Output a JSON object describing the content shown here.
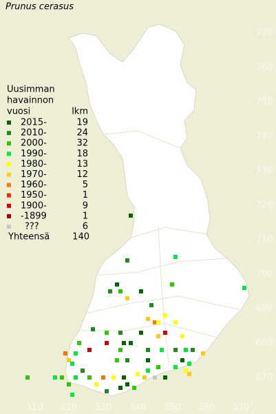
{
  "title": "Prunus cerasus",
  "legend": {
    "heading": [
      "Uusimman",
      "havainnon",
      "vuosi"
    ],
    "count_heading": "lkm",
    "items": [
      {
        "label": "2015-",
        "count": 19,
        "color": "#006400"
      },
      {
        "label": "2010-",
        "count": 24,
        "color": "#1e8c1e"
      },
      {
        "label": "2000-",
        "count": 32,
        "color": "#2ec800"
      },
      {
        "label": "1990-",
        "count": 18,
        "color": "#00e83c"
      },
      {
        "label": "1980-",
        "count": 13,
        "color": "#ffff00"
      },
      {
        "label": "1970-",
        "count": 12,
        "color": "#ffc81e"
      },
      {
        "label": "1960-",
        "count": 5,
        "color": "#ff7800"
      },
      {
        "label": "1950-",
        "count": 1,
        "color": "#ff2800"
      },
      {
        "label": "1900-",
        "count": 9,
        "color": "#d20000"
      },
      {
        "label": "-1899",
        "count": 1,
        "color": "#a00000"
      },
      {
        "label": "???",
        "count": 6,
        "color": "#c8c8c8"
      }
    ],
    "total_label": "Yhteensä",
    "total": 140
  },
  "map": {
    "xticks": [
      310,
      320,
      330,
      340,
      350,
      360,
      370
    ],
    "yticks": [
      670,
      680,
      690,
      700,
      710,
      720,
      730,
      740,
      750,
      760,
      770
    ],
    "observations": [
      [
        338,
        717,
        0
      ],
      [
        337,
        704,
        1
      ],
      [
        334,
        697,
        0
      ],
      [
        332,
        695,
        1
      ],
      [
        335,
        695,
        2
      ],
      [
        337,
        693,
        5
      ],
      [
        350,
        697,
        2
      ],
      [
        371,
        696,
        3
      ],
      [
        341,
        695,
        0
      ],
      [
        351,
        705,
        3
      ],
      [
        344,
        691,
        1
      ],
      [
        343,
        687,
        5
      ],
      [
        345,
        686,
        6
      ],
      [
        346,
        686,
        4
      ],
      [
        348,
        688,
        4
      ],
      [
        351,
        686,
        4
      ],
      [
        348,
        683,
        8
      ],
      [
        346,
        682,
        5
      ],
      [
        353,
        682,
        4
      ],
      [
        341,
        683,
        0
      ],
      [
        335,
        683,
        1
      ],
      [
        331,
        683,
        2
      ],
      [
        331,
        680,
        8
      ],
      [
        336,
        680,
        0
      ],
      [
        338,
        680,
        0
      ],
      [
        335,
        678,
        2
      ],
      [
        337,
        675,
        1
      ],
      [
        334,
        675,
        2
      ],
      [
        327,
        684,
        1
      ],
      [
        326,
        678,
        8
      ],
      [
        323,
        680,
        2
      ],
      [
        322,
        677,
        3
      ],
      [
        319,
        677,
        6
      ],
      [
        320,
        675,
        5
      ],
      [
        321,
        674,
        3
      ],
      [
        343,
        678,
        1
      ],
      [
        343,
        675,
        0
      ],
      [
        347,
        678,
        3
      ],
      [
        351,
        678,
        1
      ],
      [
        354,
        678,
        3
      ],
      [
        356,
        678,
        1
      ],
      [
        359,
        677,
        5
      ],
      [
        353,
        675,
        0
      ],
      [
        355,
        674,
        3
      ],
      [
        354,
        672,
        4
      ],
      [
        355,
        671,
        5
      ],
      [
        351,
        673,
        3
      ],
      [
        346,
        673,
        2
      ],
      [
        343,
        672,
        3
      ],
      [
        340,
        671,
        4
      ],
      [
        336,
        670,
        0
      ],
      [
        337,
        668,
        0
      ],
      [
        335,
        667,
        0
      ],
      [
        333,
        670,
        4
      ],
      [
        330,
        670,
        6
      ],
      [
        328,
        668,
        4
      ],
      [
        326,
        670,
        2
      ],
      [
        324,
        672,
        1
      ],
      [
        322,
        670,
        3
      ],
      [
        320,
        668,
        2
      ],
      [
        318,
        670,
        2
      ],
      [
        316,
        670,
        3
      ],
      [
        308,
        670,
        2
      ],
      [
        321,
        665,
        3
      ],
      [
        331,
        666,
        1
      ],
      [
        339,
        667,
        2
      ],
      [
        342,
        670,
        5
      ],
      [
        345,
        670,
        10
      ],
      [
        348,
        670,
        0
      ]
    ]
  }
}
